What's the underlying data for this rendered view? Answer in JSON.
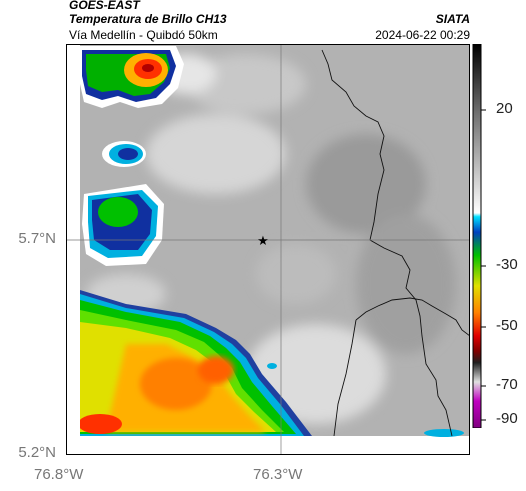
{
  "header": {
    "satellite": "GOES-EAST",
    "product": "Temperatura de Brillo CH13",
    "region": "Vía Medellín - Quibdó 50km",
    "source": "SIATA",
    "timestamp": "2024-06-22 00:29"
  },
  "axes": {
    "lat_labels": [
      "5.7°N",
      "5.2°N"
    ],
    "lon_labels": [
      "76.8°W",
      "76.3°W"
    ]
  },
  "colorbar": {
    "ticks": [
      "20",
      "-30",
      "-50",
      "-70",
      "-90"
    ],
    "colors": [
      "#000000",
      "#ffffff",
      "#00c0e0",
      "#0040c0",
      "#00c000",
      "#e0e000",
      "#ff8000",
      "#e00000",
      "#800000",
      "#202020",
      "#c0c0c0",
      "#c000c0"
    ]
  },
  "map": {
    "marker_symbol": "★",
    "marker_name": "reference-point-star"
  }
}
